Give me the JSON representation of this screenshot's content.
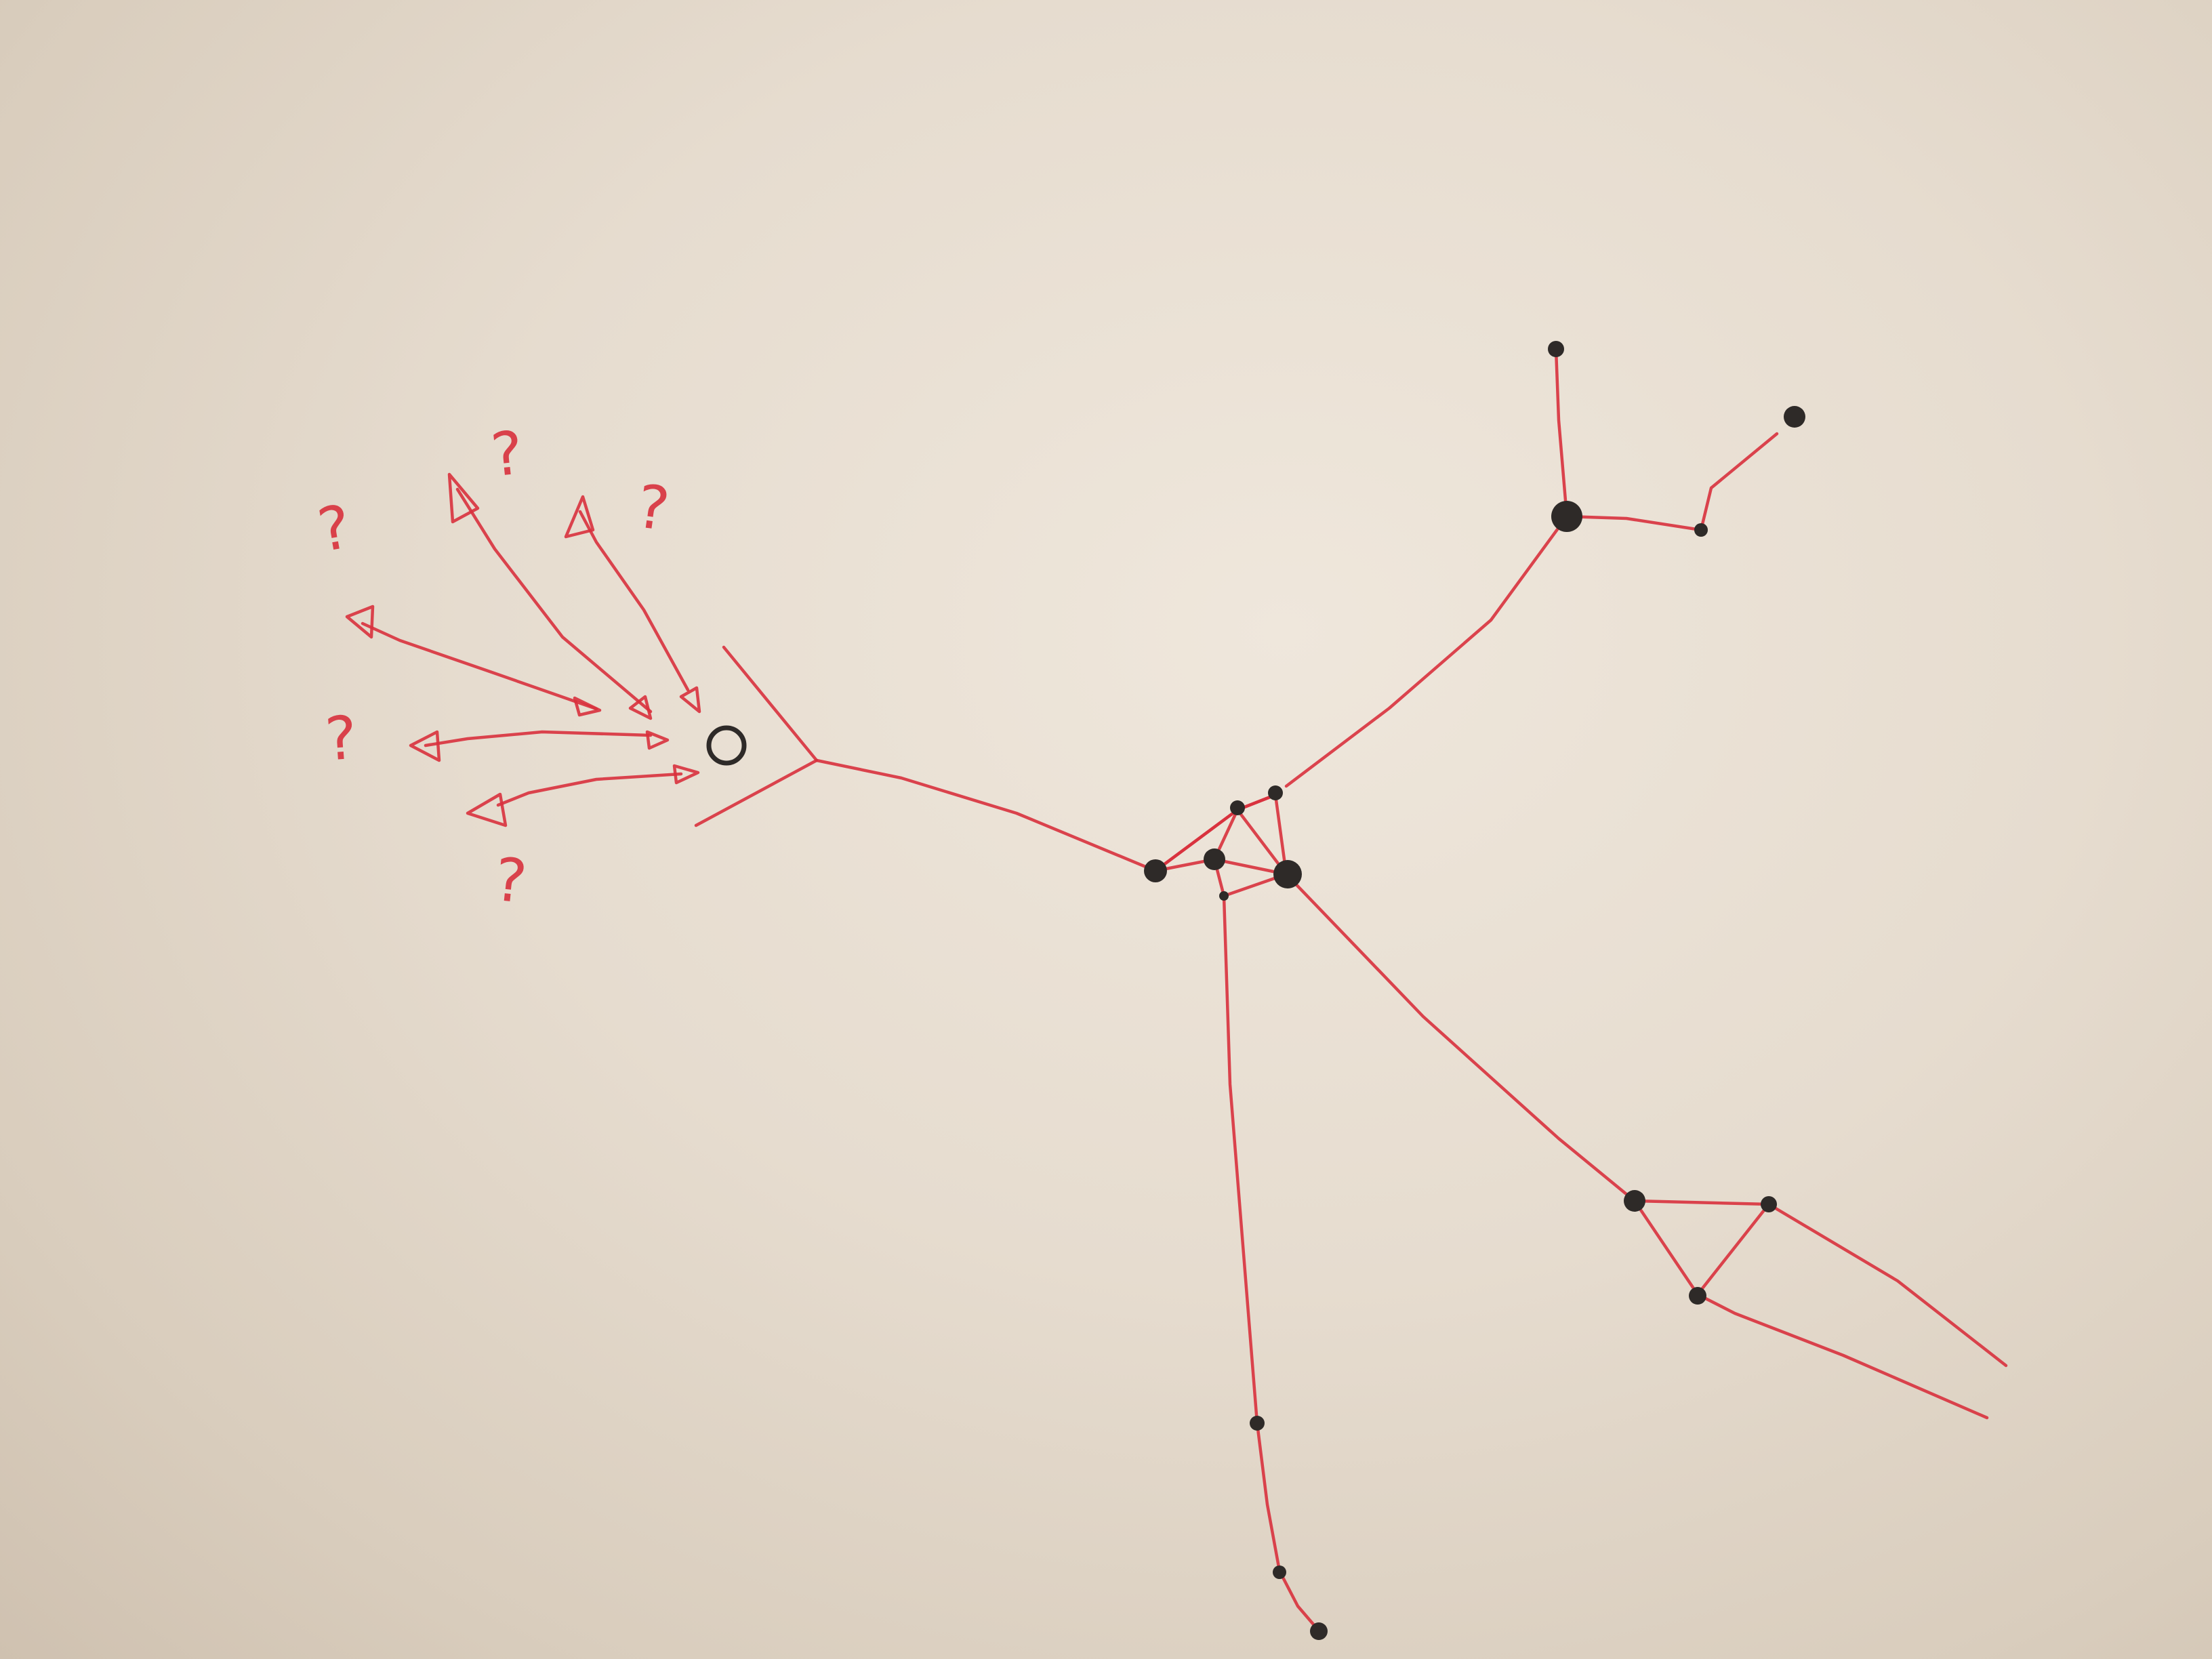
{
  "colors": {
    "paper": "#e6dccf",
    "ink_red": "#d8313d",
    "ink_black": "#2e2a28"
  },
  "annotations": {
    "question_marks": [
      "?",
      "?",
      "?",
      "?",
      "?"
    ]
  }
}
